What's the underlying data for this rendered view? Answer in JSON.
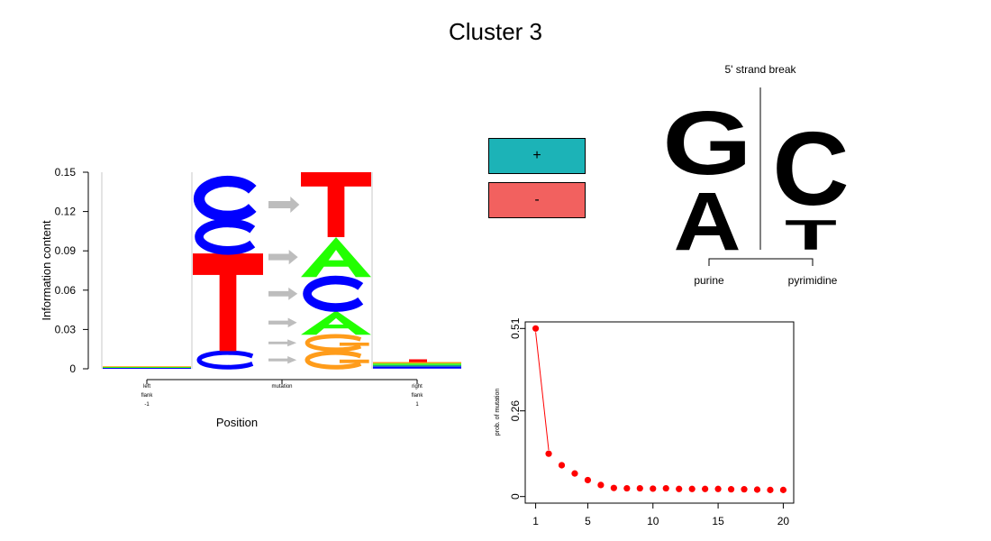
{
  "title": "Cluster 3",
  "colors": {
    "C": "#0000ff",
    "T": "#ff0000",
    "A": "#22ff00",
    "G": "#ff9c1a",
    "arrow": "#bdbdbd",
    "plus": "#1cb3b7",
    "minus": "#f2615f",
    "point": "#ff0000"
  },
  "logo": {
    "type": "sequence-logo",
    "ylabel": "Information content",
    "xlabel": "Position",
    "yticks": [
      "0",
      "0.03",
      "0.06",
      "0.09",
      "0.12",
      "0.15"
    ],
    "ylim": [
      0,
      0.15
    ],
    "positions": [
      {
        "label_lines": [
          "left",
          "flank",
          "-1"
        ]
      },
      {
        "label_lines": [
          "mutation"
        ]
      },
      {
        "label_lines": [
          "right",
          "flank",
          "1"
        ]
      }
    ],
    "mutation_ref_stack": [
      {
        "letter": "C",
        "value": 0.0135
      },
      {
        "letter": "T",
        "value": 0.0745
      },
      {
        "letter": "C",
        "value": 0.0255
      },
      {
        "letter": "C",
        "value": 0.0325
      }
    ],
    "mutation_alt_stack": [
      {
        "letter": "G",
        "value": 0.0135
      },
      {
        "letter": "G",
        "value": 0.0125
      },
      {
        "letter": "A",
        "value": 0.0185
      },
      {
        "letter": "C",
        "value": 0.0255
      },
      {
        "letter": "A",
        "value": 0.0305
      },
      {
        "letter": "T",
        "value": 0.0495
      }
    ]
  },
  "strand_key": {
    "plus_label": "+",
    "minus_label": "-"
  },
  "strand_break": {
    "title": "5' strand break",
    "left_group_label": "purine",
    "right_group_label": "pyrimidine",
    "left_letters": [
      "A",
      "G"
    ],
    "right_letters": [
      "T",
      "C"
    ]
  },
  "chart_data": {
    "type": "scatter",
    "title": "",
    "ylabel": "prob. of mutation",
    "xlabel": "",
    "xticks": [
      1,
      5,
      10,
      15,
      20
    ],
    "yticks": [
      "0",
      "0.26",
      "0.51"
    ],
    "xlim": [
      0.2,
      20.8
    ],
    "ylim": [
      -0.02,
      0.53
    ],
    "x": [
      1,
      2,
      3,
      4,
      5,
      6,
      7,
      8,
      9,
      10,
      11,
      12,
      13,
      14,
      15,
      16,
      17,
      18,
      19,
      20
    ],
    "y": [
      0.51,
      0.13,
      0.095,
      0.07,
      0.05,
      0.035,
      0.026,
      0.025,
      0.025,
      0.024,
      0.025,
      0.023,
      0.023,
      0.023,
      0.023,
      0.022,
      0.022,
      0.021,
      0.02,
      0.02
    ],
    "connect": [
      1,
      2
    ]
  }
}
